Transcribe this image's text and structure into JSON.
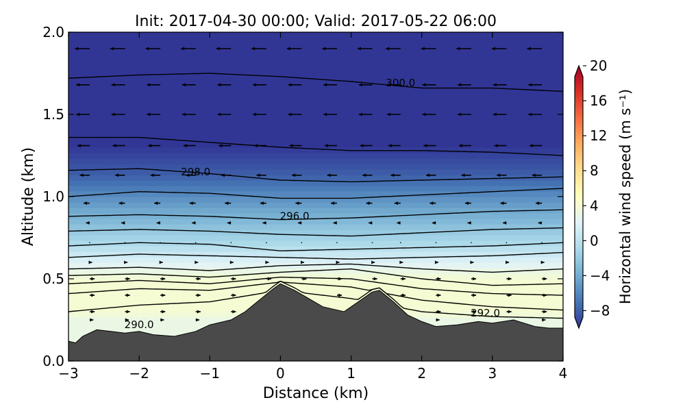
{
  "chart_data": {
    "type": "heatmap",
    "title": "Init: 2017-04-30 00:00; Valid: 2017-05-22 06:00",
    "xlabel": "Distance (km)",
    "ylabel": "Altitude (km)",
    "xlim": [
      -3,
      4
    ],
    "ylim": [
      0.0,
      2.0
    ],
    "x_ticks": [
      -3,
      -2,
      -1,
      0,
      1,
      2,
      3,
      4
    ],
    "x_tick_labels": [
      "−3",
      "−2",
      "−1",
      "0",
      "1",
      "2",
      "3",
      "4"
    ],
    "y_ticks": [
      0.0,
      0.5,
      1.0,
      1.5,
      2.0
    ],
    "y_tick_labels": [
      "0.0",
      "0.5",
      "1.0",
      "1.5",
      "2.0"
    ],
    "grid": false,
    "colorbar": {
      "label": "Horizontal wind speed (m s⁻¹)",
      "min": -10,
      "max": 20,
      "ticks": [
        -8,
        -4,
        0,
        4,
        8,
        12,
        16,
        20
      ],
      "tick_labels": [
        "−8",
        "−4",
        "0",
        "4",
        "8",
        "12",
        "16",
        "20"
      ],
      "colormap": "RdYlBu_r",
      "extend": "both"
    },
    "terrain": {
      "color": "#4a4a4a",
      "x": [
        -3.0,
        -2.9,
        -2.8,
        -2.6,
        -2.4,
        -2.2,
        -2.0,
        -1.8,
        -1.5,
        -1.2,
        -1.0,
        -0.7,
        -0.5,
        -0.3,
        -0.1,
        0.0,
        0.2,
        0.4,
        0.6,
        0.9,
        1.1,
        1.3,
        1.4,
        1.6,
        1.8,
        2.0,
        2.2,
        2.5,
        2.8,
        3.0,
        3.3,
        3.6,
        3.8,
        4.0
      ],
      "y": [
        0.12,
        0.11,
        0.15,
        0.19,
        0.18,
        0.17,
        0.18,
        0.16,
        0.15,
        0.18,
        0.22,
        0.25,
        0.3,
        0.37,
        0.44,
        0.47,
        0.43,
        0.38,
        0.33,
        0.3,
        0.36,
        0.42,
        0.43,
        0.36,
        0.28,
        0.24,
        0.21,
        0.22,
        0.24,
        0.23,
        0.25,
        0.21,
        0.2,
        0.2
      ]
    },
    "isentropes": [
      {
        "x": [
          -3,
          -2,
          -1,
          0,
          1,
          2,
          3,
          4
        ],
        "y": [
          1.72,
          1.74,
          1.75,
          1.73,
          1.7,
          1.66,
          1.66,
          1.64
        ]
      },
      {
        "x": [
          -3,
          -2,
          -1,
          0,
          1,
          2,
          3,
          4
        ],
        "y": [
          1.36,
          1.36,
          1.33,
          1.3,
          1.28,
          1.28,
          1.27,
          1.25
        ]
      },
      {
        "x": [
          -3,
          -2,
          -1,
          0,
          1,
          2,
          3,
          4
        ],
        "y": [
          1.16,
          1.17,
          1.14,
          1.1,
          1.09,
          1.1,
          1.11,
          1.12
        ]
      },
      {
        "x": [
          -3,
          -2,
          -1,
          0,
          1,
          2,
          3,
          4
        ],
        "y": [
          1.0,
          1.03,
          1.02,
          0.99,
          0.99,
          1.01,
          1.03,
          1.05
        ]
      },
      {
        "x": [
          -3,
          -2,
          -1,
          0,
          1,
          2,
          3,
          4
        ],
        "y": [
          0.88,
          0.89,
          0.88,
          0.86,
          0.87,
          0.89,
          0.91,
          0.92
        ]
      },
      {
        "x": [
          -3,
          -2,
          -1,
          0,
          1,
          2,
          3,
          4
        ],
        "y": [
          0.79,
          0.8,
          0.79,
          0.77,
          0.76,
          0.78,
          0.8,
          0.81
        ]
      },
      {
        "x": [
          -3,
          -2,
          -1,
          0,
          1,
          2,
          3,
          4
        ],
        "y": [
          0.7,
          0.72,
          0.71,
          0.67,
          0.68,
          0.69,
          0.7,
          0.72
        ]
      },
      {
        "x": [
          -3,
          -2,
          -1,
          0,
          1,
          2,
          3,
          4
        ],
        "y": [
          0.63,
          0.65,
          0.64,
          0.63,
          0.62,
          0.63,
          0.64,
          0.66
        ]
      },
      {
        "x": [
          -3,
          -2,
          -1,
          0,
          1,
          2,
          3,
          4
        ],
        "y": [
          0.56,
          0.57,
          0.55,
          0.58,
          0.59,
          0.56,
          0.54,
          0.56
        ]
      },
      {
        "x": [
          -3,
          -2,
          -1,
          0,
          1,
          2,
          3,
          4
        ],
        "y": [
          0.52,
          0.53,
          0.51,
          0.54,
          0.56,
          0.5,
          0.46,
          0.47
        ]
      },
      {
        "x": [
          -3,
          -2,
          -1,
          0,
          1,
          2,
          3,
          4
        ],
        "y": [
          0.47,
          0.49,
          0.47,
          0.51,
          0.5,
          0.44,
          0.41,
          0.4
        ]
      },
      {
        "x": [
          -3,
          -2,
          -1,
          0,
          1,
          2,
          3,
          4
        ],
        "y": [
          0.41,
          0.44,
          0.43,
          0.48,
          0.45,
          0.37,
          0.33,
          0.31
        ]
      },
      {
        "x": [
          -3,
          -2,
          -1,
          0,
          1,
          2,
          3,
          4
        ],
        "y": [
          0.3,
          0.34,
          0.36,
          0.43,
          0.38,
          0.3,
          0.27,
          0.26
        ]
      }
    ],
    "contour_labels": [
      {
        "text": "300.0",
        "x": 1.7,
        "y": 1.67
      },
      {
        "text": "298.0",
        "x": -1.2,
        "y": 1.13
      },
      {
        "text": "296.0",
        "x": 0.2,
        "y": 0.86
      },
      {
        "text": "292.0",
        "x": 2.9,
        "y": 0.27
      },
      {
        "text": "290.0",
        "x": -2.0,
        "y": 0.2
      }
    ],
    "wind_vectors": {
      "x_columns": [
        -2.7,
        -2.2,
        -1.7,
        -1.2,
        -0.7,
        -0.2,
        0.3,
        0.8,
        1.3,
        1.7,
        2.2,
        2.7,
        3.2,
        3.7
      ],
      "levels": [
        1.9,
        1.68,
        1.5,
        1.31,
        1.13,
        0.96,
        0.84,
        0.72,
        0.6,
        0.5,
        0.4,
        0.3,
        0.25
      ],
      "u_by_level": [
        -12,
        -11,
        -11,
        -10,
        -8,
        -5,
        -3,
        -1,
        2,
        4,
        4,
        4,
        3
      ]
    }
  }
}
